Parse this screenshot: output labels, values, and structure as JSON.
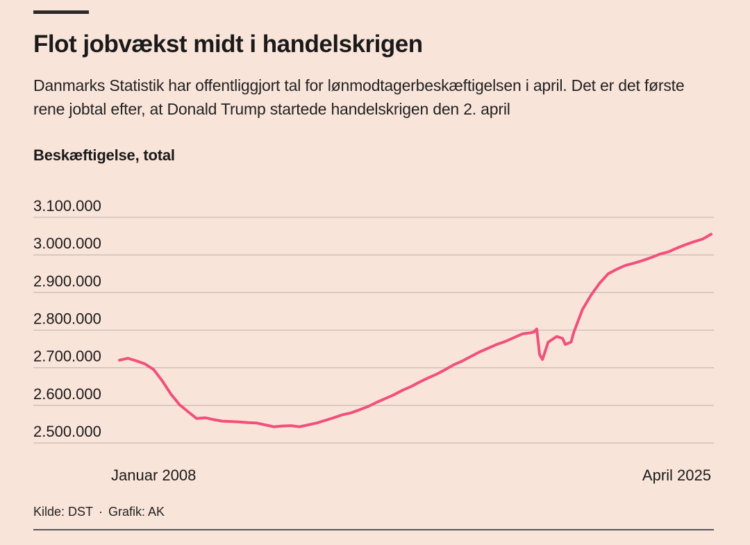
{
  "header": {
    "title": "Flot jobvækst midt i handelskrigen",
    "subtitle": "Danmarks Statistik har offentliggjort tal for lønmodtagerbeskæftigelsen i april. Det er det første rene jobtal efter, at Donald Trump startede handelskrigen den 2. april"
  },
  "footer": {
    "source": "Kilde: DST",
    "separator": "·",
    "credit": "Grafik: AK"
  },
  "chart_data": {
    "type": "line",
    "title": "Flot jobvækst midt i handelskrigen",
    "ylabel": "Beskæftigelse, total",
    "xlabel": "",
    "x_start_label": "Januar 2008",
    "x_end_label": "April 2025",
    "ylim": [
      2500000,
      3100000
    ],
    "yticks": [
      2500000,
      2600000,
      2700000,
      2800000,
      2900000,
      3000000,
      3100000
    ],
    "ytick_labels": [
      "2.500.000",
      "2.600.000",
      "2.700.000",
      "2.800.000",
      "2.900.000",
      "3.000.000",
      "3.100.000"
    ],
    "grid": true,
    "line_color": "#f0517a",
    "series": [
      {
        "x": [
          "2008-01",
          "2008-04",
          "2008-07",
          "2008-10",
          "2009-01",
          "2009-04",
          "2009-07",
          "2009-10",
          "2010-01",
          "2010-04",
          "2010-07",
          "2010-10",
          "2011-01",
          "2011-04",
          "2011-07",
          "2011-10",
          "2012-01",
          "2012-04",
          "2012-07",
          "2012-10",
          "2013-01",
          "2013-04",
          "2013-07",
          "2013-10",
          "2014-01",
          "2014-04",
          "2014-07",
          "2014-10",
          "2015-01",
          "2015-04",
          "2015-07",
          "2015-10",
          "2016-01",
          "2016-04",
          "2016-07",
          "2016-10",
          "2017-01",
          "2017-04",
          "2017-07",
          "2017-10",
          "2018-01",
          "2018-04",
          "2018-07",
          "2018-10",
          "2019-01",
          "2019-04",
          "2019-07",
          "2019-10",
          "2020-01",
          "2020-02",
          "2020-03",
          "2020-04",
          "2020-05",
          "2020-07",
          "2020-10",
          "2020-12",
          "2021-01",
          "2021-03",
          "2021-04",
          "2021-07",
          "2021-10",
          "2022-01",
          "2022-04",
          "2022-07",
          "2022-10",
          "2023-01",
          "2023-04",
          "2023-07",
          "2023-10",
          "2024-01",
          "2024-04",
          "2024-07",
          "2024-10",
          "2025-01",
          "2025-04"
        ],
        "values": [
          2720000,
          2725000,
          2718000,
          2710000,
          2695000,
          2665000,
          2630000,
          2602000,
          2583000,
          2565000,
          2567000,
          2562000,
          2558000,
          2557000,
          2556000,
          2554000,
          2553000,
          2548000,
          2543000,
          2545000,
          2546000,
          2543000,
          2548000,
          2553000,
          2560000,
          2567000,
          2575000,
          2580000,
          2588000,
          2597000,
          2608000,
          2618000,
          2628000,
          2640000,
          2650000,
          2662000,
          2673000,
          2683000,
          2695000,
          2708000,
          2718000,
          2730000,
          2742000,
          2752000,
          2762000,
          2770000,
          2780000,
          2790000,
          2793000,
          2795000,
          2803000,
          2735000,
          2722000,
          2768000,
          2783000,
          2778000,
          2762000,
          2768000,
          2795000,
          2855000,
          2893000,
          2925000,
          2950000,
          2962000,
          2972000,
          2978000,
          2985000,
          2993000,
          3002000,
          3008000,
          3018000,
          3027000,
          3035000,
          3042000,
          3055000
        ]
      }
    ]
  }
}
